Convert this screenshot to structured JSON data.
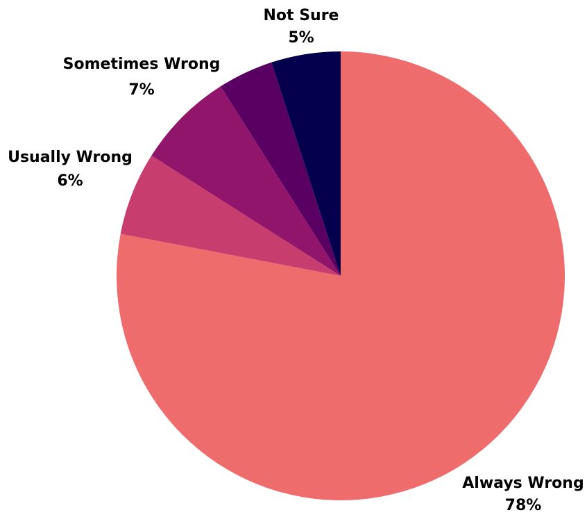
{
  "chart_data": {
    "type": "pie",
    "title": "",
    "start": "top",
    "direction": "clockwise",
    "slices": [
      {
        "label": "Always Wrong",
        "value": 78,
        "display": "78%",
        "color": "#EF6C6C"
      },
      {
        "label": "Usually Wrong",
        "value": 6,
        "display": "6%",
        "color": "#C73E6E"
      },
      {
        "label": "Sometimes Wrong",
        "value": 7,
        "display": "7%",
        "color": "#91166B"
      },
      {
        "label": "Not Sure",
        "value": 4,
        "display": "",
        "color": "#5A0062"
      },
      {
        "label": "",
        "value": 5,
        "display": "5%",
        "color": "#05004E"
      }
    ]
  }
}
